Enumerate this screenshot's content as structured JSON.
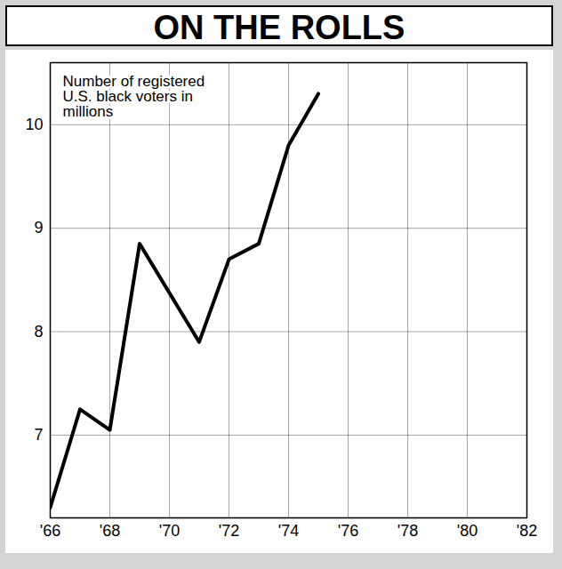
{
  "chart_data": {
    "type": "line",
    "title": "ON THE ROLLS",
    "annotation": "Number of registered U.S. black voters in millions",
    "x": [
      1966,
      1967,
      1968,
      1969,
      1971,
      1972,
      1973,
      1974,
      1975
    ],
    "values": [
      6.3,
      7.25,
      7.05,
      8.85,
      7.9,
      8.7,
      8.85,
      9.8,
      10.3
    ],
    "color": "#000000",
    "xlim": [
      1966,
      1982
    ],
    "xticks": [
      {
        "value": 1966,
        "label": "'66"
      },
      {
        "value": 1968,
        "label": "'68"
      },
      {
        "value": 1970,
        "label": "'70"
      },
      {
        "value": 1972,
        "label": "'72"
      },
      {
        "value": 1974,
        "label": "'74"
      },
      {
        "value": 1976,
        "label": "'76"
      },
      {
        "value": 1978,
        "label": "'78"
      },
      {
        "value": 1980,
        "label": "'80"
      },
      {
        "value": 1982,
        "label": "'82"
      }
    ],
    "ylim": [
      6.2,
      10.6
    ],
    "yticks": [
      7,
      8,
      9,
      10
    ],
    "grid": true
  }
}
